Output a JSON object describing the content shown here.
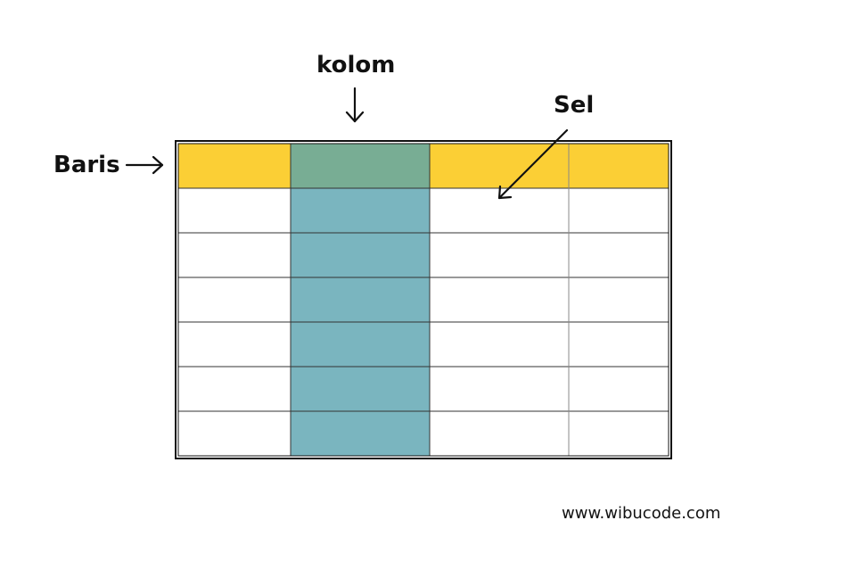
{
  "labels": {
    "column": "kolom",
    "cell": "Sel",
    "row": "Baris"
  },
  "footer": {
    "url": "www.wibucode.com"
  },
  "table": {
    "rows": 7,
    "columns": 4,
    "highlighted_row_index": 0,
    "highlighted_column_index": 1
  },
  "colors": {
    "row_highlight": "#FBCF35",
    "column_highlight": "#7AB5BF",
    "intersection": "#78AD94",
    "cell": "#FFFFFF",
    "grid_line": "#333333",
    "text": "#111111"
  },
  "arrows": [
    "arrow-down-icon",
    "arrow-right-icon",
    "arrow-diagonal-icon"
  ]
}
